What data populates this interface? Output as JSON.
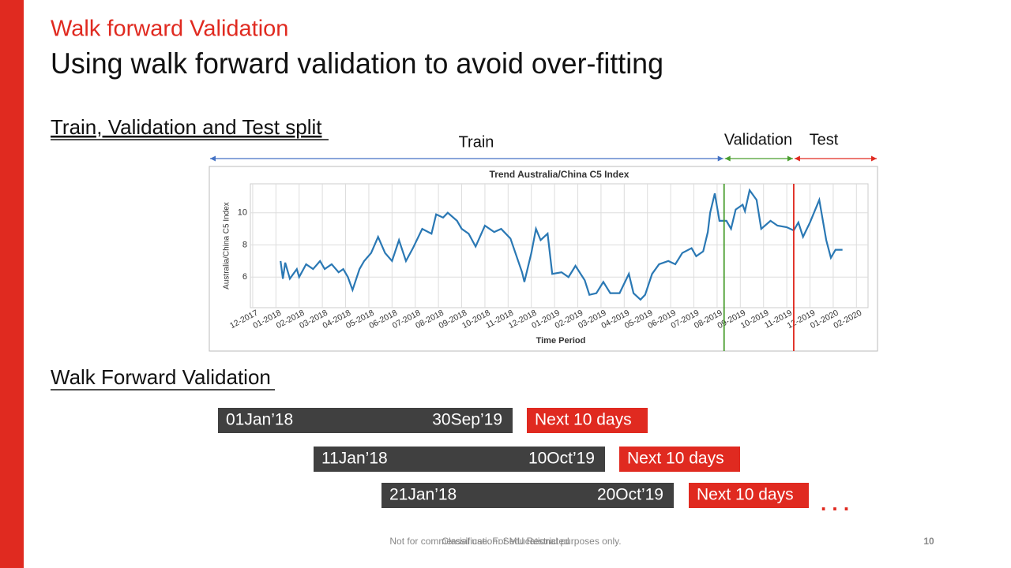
{
  "slide": {
    "kicker": "Walk forward Validation",
    "title": "Using walk forward validation to avoid over-fitting",
    "section1": "Train, Validation and Test split",
    "split_labels": [
      "Train",
      "Validation",
      "Test"
    ],
    "section2": "Walk Forward Validation",
    "windows": [
      {
        "start": "01Jan’18",
        "end": "30Sep’19",
        "next": "Next 10 days"
      },
      {
        "start": "11Jan’18",
        "end": "10Oct’19",
        "next": "Next 10 days"
      },
      {
        "start": "21Jan’18",
        "end": "20Oct’19",
        "next": "Next 10 days"
      }
    ],
    "ellipsis": ". . .",
    "footer_note": "Not for commercial use. For educational purposes only.",
    "classification": "Classification: SMU Restricted",
    "page": "10"
  },
  "chart_data": {
    "type": "line",
    "title": "Trend Australia/China C5 Index",
    "x_label": "Time Period",
    "y_label": "Australia/China C5 Index",
    "xlim": [
      -0.1,
      26.5
    ],
    "ylim": [
      4.1,
      11.8
    ],
    "yticks": [
      6,
      8,
      10
    ],
    "grid": true,
    "xticks": [
      {
        "value": 0,
        "label": "12-2017"
      },
      {
        "value": 1,
        "label": "01-2018"
      },
      {
        "value": 2,
        "label": "02-2018"
      },
      {
        "value": 3,
        "label": "03-2018"
      },
      {
        "value": 4,
        "label": "04-2018"
      },
      {
        "value": 5,
        "label": "05-2018"
      },
      {
        "value": 6,
        "label": "06-2018"
      },
      {
        "value": 7,
        "label": "07-2018"
      },
      {
        "value": 8,
        "label": "08-2018"
      },
      {
        "value": 9,
        "label": "09-2018"
      },
      {
        "value": 10,
        "label": "10-2018"
      },
      {
        "value": 11,
        "label": "11-2018"
      },
      {
        "value": 12,
        "label": "12-2018"
      },
      {
        "value": 13,
        "label": "01-2019"
      },
      {
        "value": 14,
        "label": "02-2019"
      },
      {
        "value": 15,
        "label": "03-2019"
      },
      {
        "value": 16,
        "label": "04-2019"
      },
      {
        "value": 17,
        "label": "05-2019"
      },
      {
        "value": 18,
        "label": "06-2019"
      },
      {
        "value": 19,
        "label": "07-2019"
      },
      {
        "value": 20,
        "label": "08-2019"
      },
      {
        "value": 21,
        "label": "09-2019"
      },
      {
        "value": 22,
        "label": "10-2019"
      },
      {
        "value": 23,
        "label": "11-2019"
      },
      {
        "value": 24,
        "label": "12-2019"
      },
      {
        "value": 25,
        "label": "01-2020"
      },
      {
        "value": 26,
        "label": "02-2020"
      }
    ],
    "x": [
      1.2,
      1.3,
      1.4,
      1.6,
      1.9,
      2.0,
      2.3,
      2.6,
      2.9,
      3.1,
      3.4,
      3.7,
      3.9,
      4.1,
      4.3,
      4.6,
      4.8,
      5.1,
      5.4,
      5.7,
      6.0,
      6.3,
      6.6,
      6.9,
      7.3,
      7.7,
      7.9,
      8.2,
      8.4,
      8.8,
      9.0,
      9.3,
      9.6,
      10.0,
      10.4,
      10.7,
      11.1,
      11.6,
      11.7,
      12.0,
      12.2,
      12.4,
      12.7,
      12.9,
      13.3,
      13.6,
      13.9,
      14.3,
      14.5,
      14.8,
      15.1,
      15.4,
      15.8,
      16.2,
      16.4,
      16.7,
      16.9,
      17.2,
      17.5,
      17.9,
      18.2,
      18.5,
      18.9,
      19.1,
      19.4,
      19.6,
      19.7,
      19.9,
      20.1,
      20.4,
      20.6,
      20.8,
      21.1,
      21.2,
      21.4,
      21.7,
      21.9,
      22.3,
      22.6,
      23.0,
      23.3,
      23.5,
      23.7,
      24.0,
      24.4,
      24.7,
      24.9,
      25.1,
      25.4
    ],
    "series": [
      {
        "name": "C5 Index",
        "color": "#2a78b4",
        "values": [
          7.0,
          5.9,
          6.9,
          5.9,
          6.5,
          6.0,
          6.8,
          6.5,
          7.0,
          6.5,
          6.8,
          6.3,
          6.5,
          6.0,
          5.2,
          6.5,
          7.0,
          7.5,
          8.5,
          7.5,
          7.0,
          8.3,
          7.0,
          7.8,
          9.0,
          8.7,
          9.9,
          9.7,
          10.0,
          9.5,
          9.0,
          8.7,
          7.9,
          9.2,
          8.8,
          9.0,
          8.4,
          6.3,
          5.7,
          7.5,
          9.0,
          8.3,
          8.7,
          6.2,
          6.3,
          6.0,
          6.7,
          5.8,
          4.9,
          5.0,
          5.7,
          5.0,
          5.0,
          6.2,
          5.0,
          4.6,
          4.9,
          6.2,
          6.8,
          7.0,
          6.8,
          7.5,
          7.8,
          7.3,
          7.6,
          8.8,
          10.0,
          11.2,
          9.5,
          9.5,
          9.0,
          10.2,
          10.5,
          10.1,
          11.4,
          10.8,
          9.0,
          9.5,
          9.2,
          9.1,
          8.9,
          9.4,
          8.5,
          9.4,
          10.8,
          8.3,
          7.2,
          7.7,
          7.7
        ]
      }
    ],
    "vlines": [
      {
        "x": 20.3,
        "color": "#4a9e2f"
      },
      {
        "x": 23.3,
        "color": "#e02a20"
      }
    ]
  }
}
